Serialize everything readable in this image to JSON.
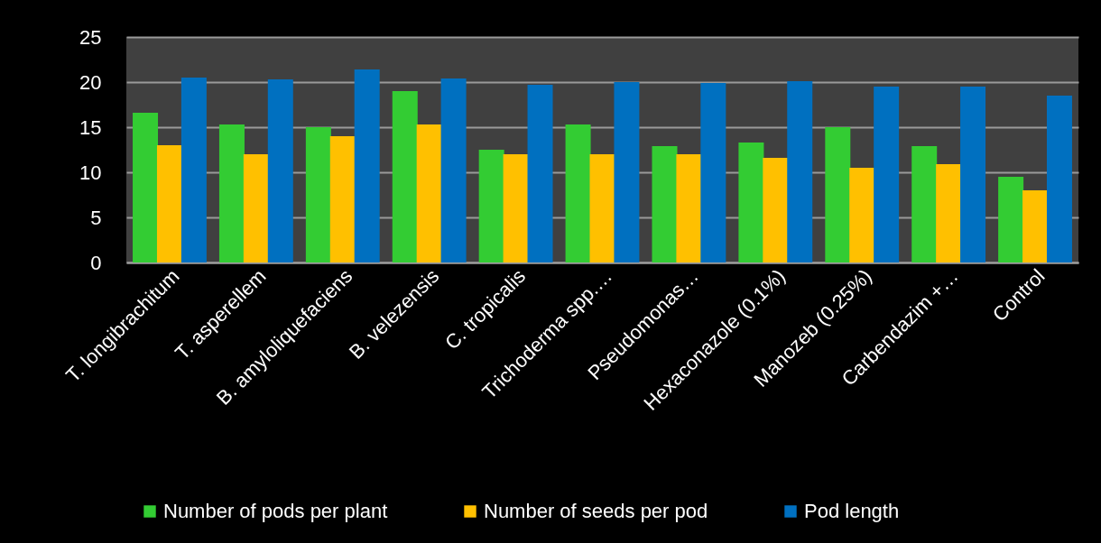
{
  "chart_data": {
    "type": "bar",
    "categories": [
      "T. longibrachitum",
      "T. asperellem",
      "B. amyloliquefaciens",
      "B. velezensis",
      "C. tropicalis",
      "Trichoderma spp.…",
      "Pseudomonas…",
      "Hexaconazole (0.1%)",
      "Manozeb (0.25%)",
      "Carbendazim +…",
      "Control"
    ],
    "series": [
      {
        "name": "Number of pods per plant",
        "color": "#33cc33",
        "values": [
          16.6,
          15.3,
          15.0,
          19.0,
          12.5,
          15.3,
          12.9,
          13.3,
          15.0,
          12.9,
          9.5
        ]
      },
      {
        "name": "Number of seeds per pod",
        "color": "#ffc000",
        "values": [
          13.0,
          12.0,
          14.0,
          15.3,
          12.0,
          12.0,
          12.0,
          11.6,
          10.5,
          10.9,
          8.0
        ]
      },
      {
        "name": "Pod length",
        "color": "#0070c0",
        "values": [
          20.5,
          20.3,
          21.4,
          20.4,
          19.7,
          20.0,
          19.9,
          20.1,
          19.5,
          19.5,
          18.5
        ]
      }
    ],
    "ylim": [
      0,
      25
    ],
    "yticks": [
      0,
      5,
      10,
      15,
      20,
      25
    ],
    "grid": "y",
    "legend": "bottom"
  }
}
